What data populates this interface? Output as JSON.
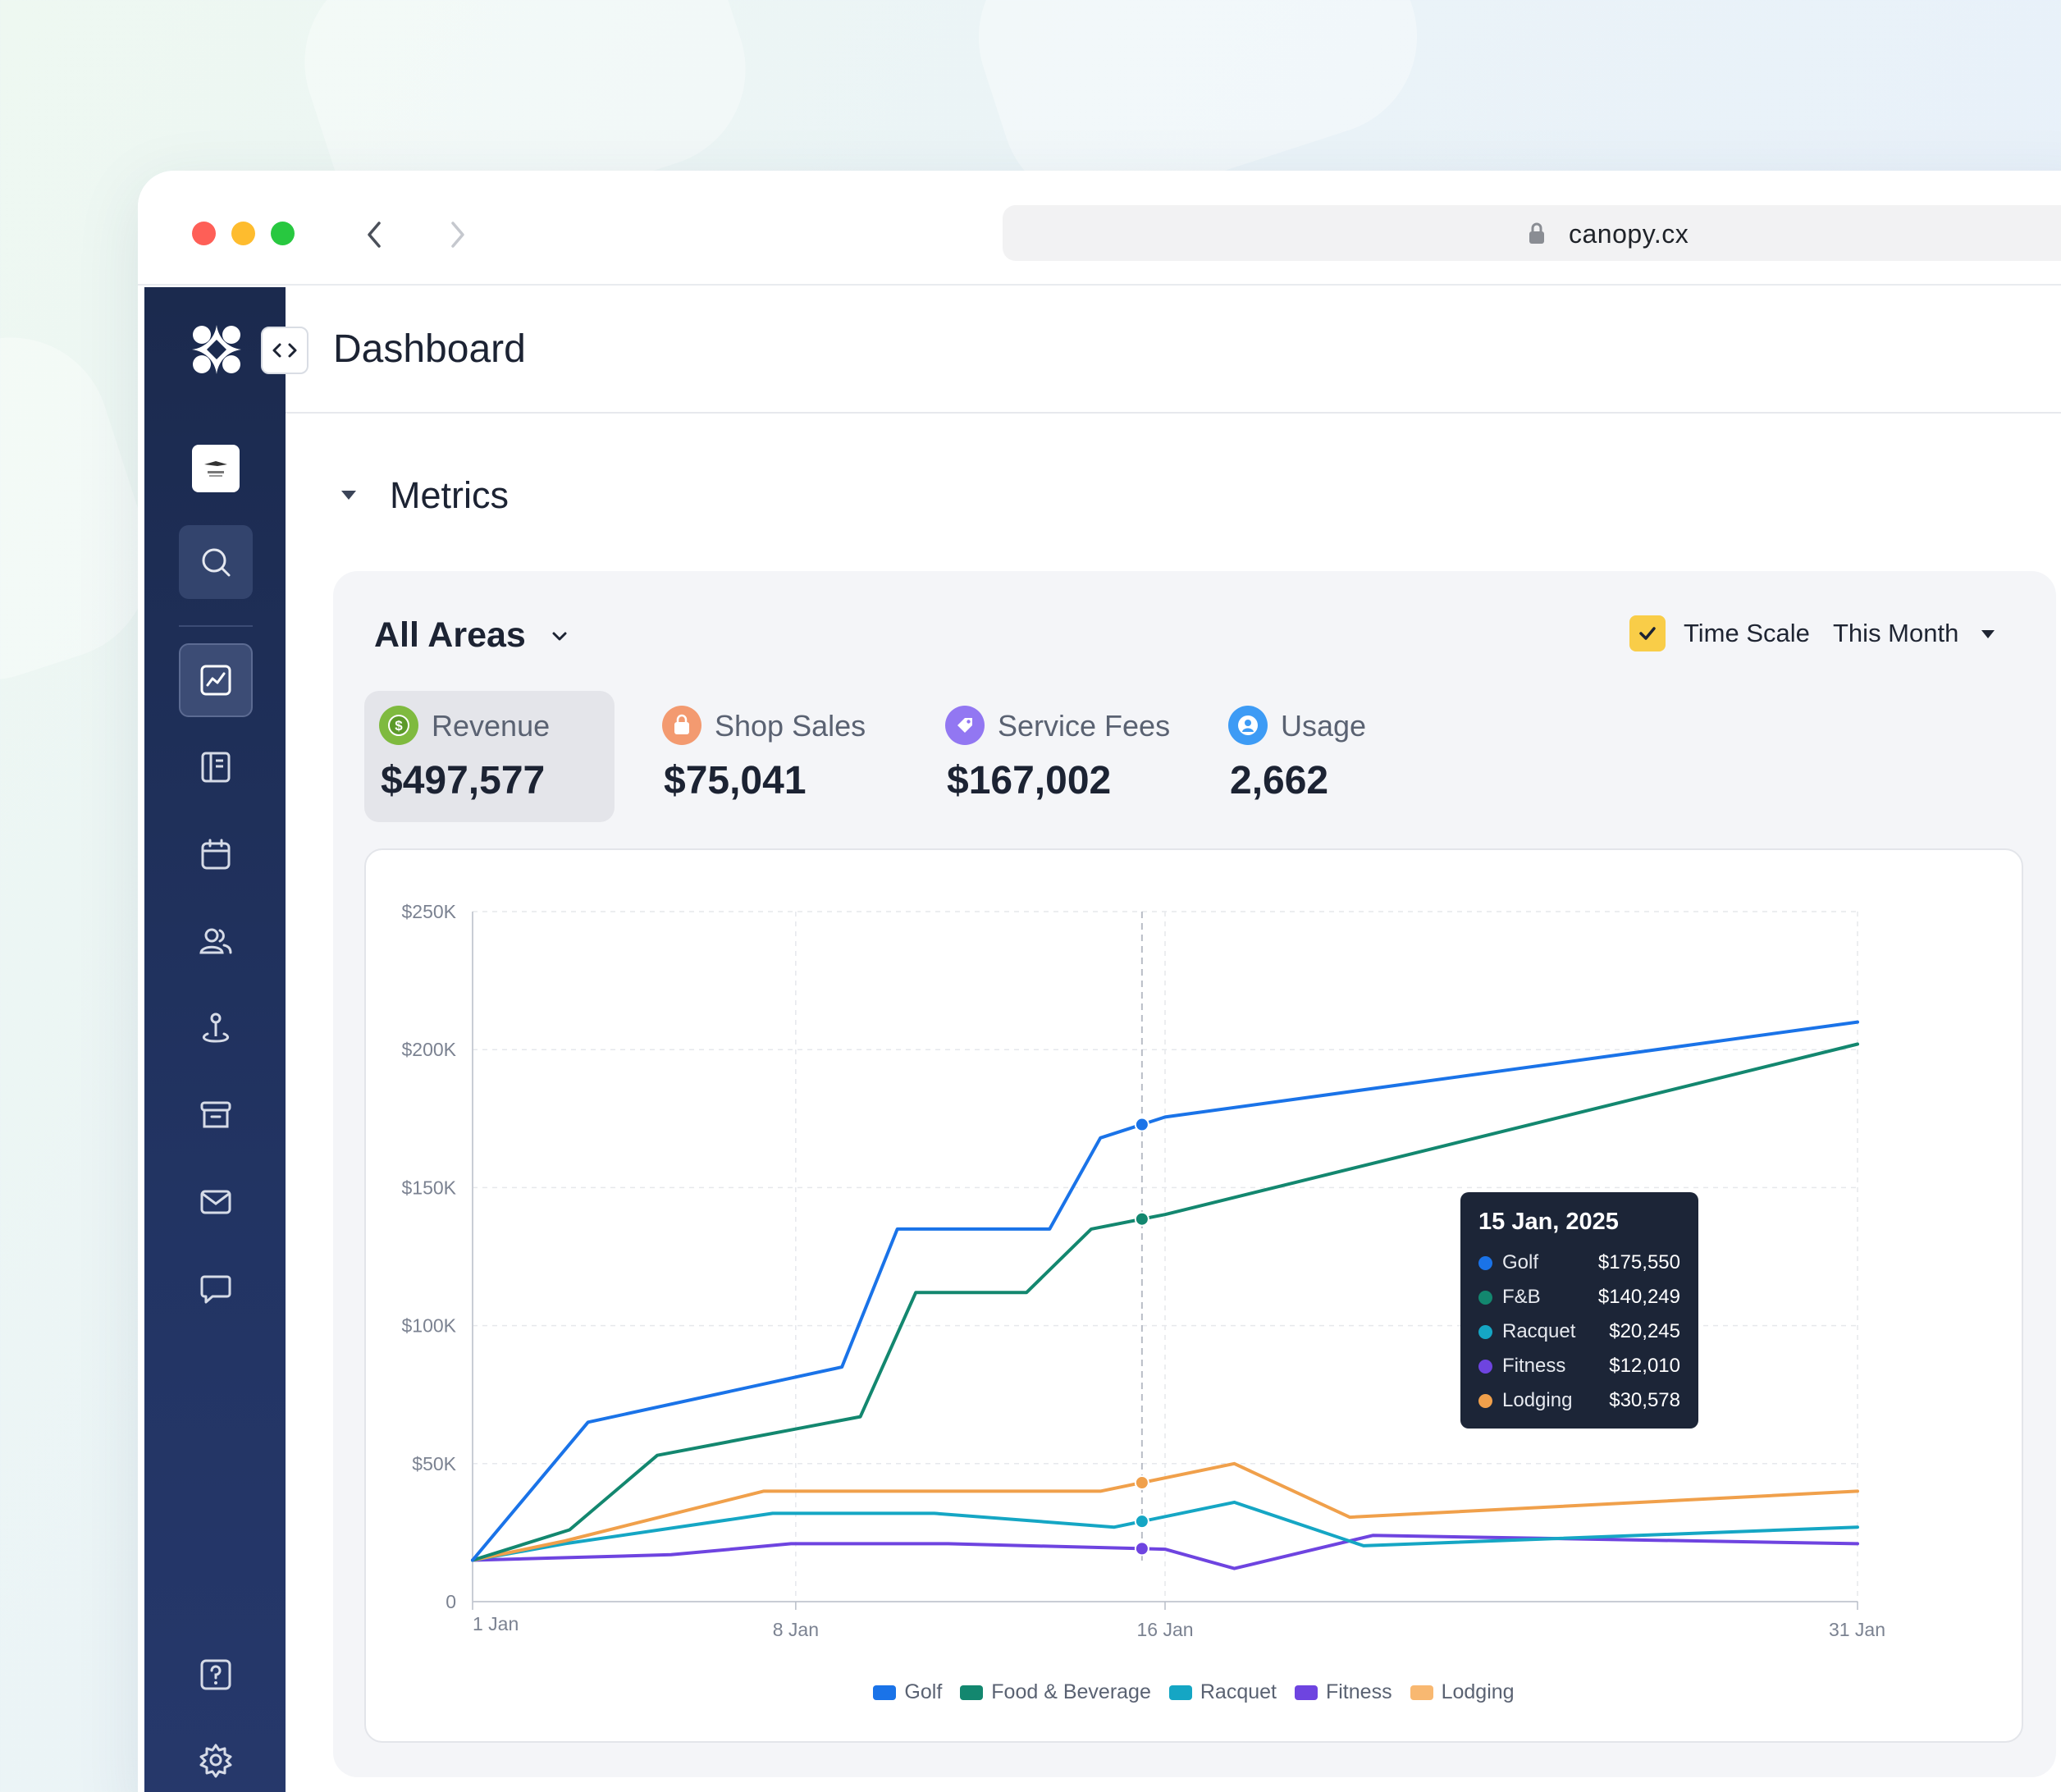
{
  "browser": {
    "url": "canopy.cx"
  },
  "header": {
    "title": "Dashboard"
  },
  "section": {
    "title": "Metrics"
  },
  "filters": {
    "area": "All Areas",
    "time_scale_label": "Time Scale",
    "time_scale_value": "This Month"
  },
  "metrics": [
    {
      "label": "Revenue",
      "value": "$497,577",
      "icon": "dollar-icon",
      "color": "#6aa84f"
    },
    {
      "label": "Shop Sales",
      "value": "$75,041",
      "icon": "shopping-bag-icon",
      "color": "#f08a5d"
    },
    {
      "label": "Service Fees",
      "value": "$167,002",
      "icon": "tag-icon",
      "color": "#8b6cf0"
    },
    {
      "label": "Usage",
      "value": "2,662",
      "icon": "user-icon",
      "color": "#2f8ff0"
    }
  ],
  "tooltip": {
    "date": "15 Jan, 2025",
    "rows": [
      {
        "name": "Golf",
        "value": "$175,550",
        "color": "#1a73e8"
      },
      {
        "name": "F&B",
        "value": "$140,249",
        "color": "#13876f"
      },
      {
        "name": "Racquet",
        "value": "$20,245",
        "color": "#15a6c4"
      },
      {
        "name": "Fitness",
        "value": "$12,010",
        "color": "#6e44e0"
      },
      {
        "name": "Lodging",
        "value": "$30,578",
        "color": "#f0a04b"
      }
    ]
  },
  "chart_data": {
    "type": "line",
    "ylim": [
      0,
      250000
    ],
    "y_ticks": [
      "0",
      "$50K",
      "$100K",
      "$150K",
      "$200K",
      "$250K"
    ],
    "y_tick_values": [
      0,
      50000,
      100000,
      150000,
      200000,
      250000
    ],
    "x_ticks": [
      "1 Jan",
      "8 Jan",
      "16 Jan",
      "31 Jan"
    ],
    "x_tick_days": [
      1,
      8,
      16,
      31
    ],
    "xlim": [
      1,
      31
    ],
    "grid": true,
    "legend": "bottom",
    "highlight_day": 15.5,
    "series": [
      {
        "name": "Golf",
        "legend": "Golf",
        "color": "#1a73e8",
        "x": [
          1,
          3.5,
          9.0,
          10.2,
          13.5,
          14.6,
          16.0,
          31
        ],
        "y": [
          15000,
          65000,
          85000,
          135000,
          135000,
          168000,
          175550,
          210000
        ]
      },
      {
        "name": "Food & Beverage",
        "legend": "Food & Beverage",
        "color": "#13876f",
        "x": [
          1,
          3.1,
          5.0,
          9.4,
          10.6,
          13.0,
          14.4,
          16.0,
          31
        ],
        "y": [
          15000,
          26000,
          53000,
          67000,
          112000,
          112000,
          135000,
          140249,
          202000
        ]
      },
      {
        "name": "Racquet",
        "legend": "Racquet",
        "color": "#15a6c4",
        "x": [
          1,
          3.0,
          7.5,
          11.0,
          14.9,
          17.5,
          20.3,
          31
        ],
        "y": [
          15000,
          21000,
          32000,
          32000,
          27000,
          36000,
          20245,
          27000
        ]
      },
      {
        "name": "Fitness",
        "legend": "Fitness",
        "color": "#6e44e0",
        "x": [
          1,
          5.3,
          7.9,
          11.3,
          16.0,
          17.5,
          20.5,
          31
        ],
        "y": [
          15000,
          17000,
          21000,
          21000,
          19000,
          12010,
          24000,
          21000
        ]
      },
      {
        "name": "Lodging",
        "legend": "Lodging",
        "color": "#f0a04b",
        "x": [
          1,
          3.0,
          7.3,
          11.0,
          14.6,
          17.5,
          20.0,
          31
        ],
        "y": [
          15000,
          22000,
          40000,
          40000,
          40000,
          50000,
          30578,
          40000
        ]
      }
    ]
  }
}
